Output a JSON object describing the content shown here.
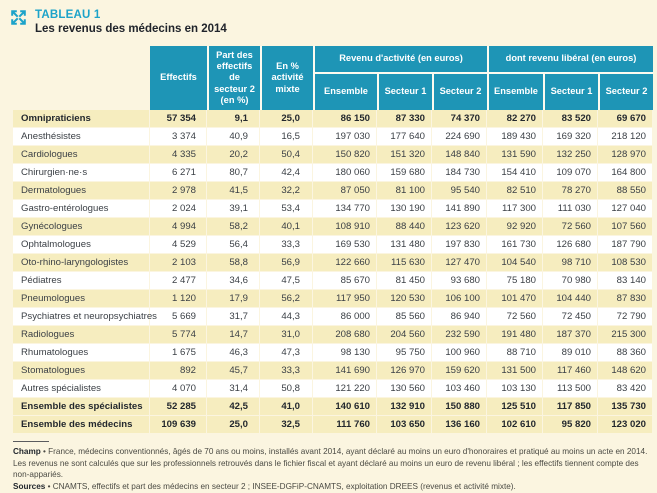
{
  "colors": {
    "accent_teal": "#1E95B6",
    "accent_cyan": "#1CA3C9",
    "row_yellow": "#F6EDBF",
    "page_cream": "#FBF5E0"
  },
  "header": {
    "tag": "TABLEAU 1",
    "title": "Les revenus des médecins en 2014",
    "icon": "expand-arrows-icon"
  },
  "table": {
    "columns": {
      "effectifs": "Effectifs",
      "part_secteur2": "Part des effectifs de secteur 2 (en %)",
      "activite_mixte": "En % activité mixte",
      "group_revenu": "Revenu d'activité (en euros)",
      "group_liberal": "dont revenu libéral (en euros)",
      "sub": [
        "Ensemble",
        "Secteur 1",
        "Secteur 2"
      ]
    },
    "rows": [
      {
        "label": "Omnipraticiens",
        "bold": true,
        "values": [
          "57 354",
          "9,1",
          "25,0",
          "86 150",
          "87 330",
          "74 370",
          "82 270",
          "83 520",
          "69 670"
        ]
      },
      {
        "label": "Anesthésistes",
        "bold": false,
        "values": [
          "3 374",
          "40,9",
          "16,5",
          "197 030",
          "177 640",
          "224 690",
          "189 430",
          "169 320",
          "218 120"
        ]
      },
      {
        "label": "Cardiologues",
        "bold": false,
        "values": [
          "4 335",
          "20,2",
          "50,4",
          "150 820",
          "151 320",
          "148 840",
          "131 590",
          "132 250",
          "128 970"
        ]
      },
      {
        "label": "Chirurgien·ne·s",
        "bold": false,
        "values": [
          "6 271",
          "80,7",
          "42,4",
          "180 060",
          "159 680",
          "184 730",
          "154 410",
          "109 070",
          "164 800"
        ]
      },
      {
        "label": "Dermatologues",
        "bold": false,
        "values": [
          "2 978",
          "41,5",
          "32,2",
          "87 050",
          "81 100",
          "95 540",
          "82 510",
          "78 270",
          "88 550"
        ]
      },
      {
        "label": "Gastro-entérologues",
        "bold": false,
        "values": [
          "2 024",
          "39,1",
          "53,4",
          "134 770",
          "130 190",
          "141 890",
          "117 300",
          "111 030",
          "127 040"
        ]
      },
      {
        "label": "Gynécologues",
        "bold": false,
        "values": [
          "4 994",
          "58,2",
          "40,1",
          "108 910",
          "88 440",
          "123 620",
          "92 920",
          "72 560",
          "107 560"
        ]
      },
      {
        "label": "Ophtalmologues",
        "bold": false,
        "values": [
          "4 529",
          "56,4",
          "33,3",
          "169 530",
          "131 480",
          "197 830",
          "161 730",
          "126 680",
          "187 790"
        ]
      },
      {
        "label": "Oto-rhino-laryngologistes",
        "bold": false,
        "values": [
          "2 103",
          "58,8",
          "56,9",
          "122 660",
          "115 630",
          "127 470",
          "104 540",
          "98 710",
          "108 530"
        ]
      },
      {
        "label": "Pédiatres",
        "bold": false,
        "values": [
          "2 477",
          "34,6",
          "47,5",
          "85 670",
          "81 450",
          "93 680",
          "75 180",
          "70 980",
          "83 140"
        ]
      },
      {
        "label": "Pneumologues",
        "bold": false,
        "values": [
          "1 120",
          "17,9",
          "56,2",
          "117 950",
          "120 530",
          "106 100",
          "101 470",
          "104 440",
          "87 830"
        ]
      },
      {
        "label": "Psychiatres et neuropsychiatres",
        "bold": false,
        "values": [
          "5 669",
          "31,7",
          "44,3",
          "86 000",
          "85 560",
          "86 940",
          "72 560",
          "72 450",
          "72 790"
        ]
      },
      {
        "label": "Radiologues",
        "bold": false,
        "values": [
          "5 774",
          "14,7",
          "31,0",
          "208 680",
          "204 560",
          "232 590",
          "191 480",
          "187 370",
          "215 300"
        ]
      },
      {
        "label": "Rhumatologues",
        "bold": false,
        "values": [
          "1 675",
          "46,3",
          "47,3",
          "98 130",
          "95 750",
          "100 960",
          "88 710",
          "89 010",
          "88 360"
        ]
      },
      {
        "label": "Stomatologues",
        "bold": false,
        "values": [
          "892",
          "45,7",
          "33,3",
          "141 690",
          "126 970",
          "159 620",
          "131 500",
          "117 460",
          "148 620"
        ]
      },
      {
        "label": "Autres spécialistes",
        "bold": false,
        "values": [
          "4 070",
          "31,4",
          "50,8",
          "121 220",
          "130 560",
          "103 460",
          "103 130",
          "113 500",
          "83 420"
        ]
      },
      {
        "label": "Ensemble des spécialistes",
        "bold": true,
        "values": [
          "52 285",
          "42,5",
          "41,0",
          "140 610",
          "132 910",
          "150 880",
          "125 510",
          "117 850",
          "135 730"
        ]
      },
      {
        "label": "Ensemble des médecins",
        "bold": true,
        "values": [
          "109 639",
          "25,0",
          "32,5",
          "111 760",
          "103 650",
          "136 160",
          "102 610",
          "95 820",
          "123 020"
        ]
      }
    ]
  },
  "footer": {
    "champ_label": "Champ",
    "champ_text": "• France, médecins conventionnés, âgés de 70 ans ou moins, installés avant 2014, ayant déclaré au moins un euro d'honoraires et pratiqué au moins un acte en 2014.",
    "note": "Les revenus ne sont calculés que sur les professionnels retrouvés dans le fichier fiscal et ayant déclaré au moins un euro de revenu libéral ; les effectifs tiennent compte des non-appariés.",
    "sources_label": "Sources",
    "sources_text": "• CNAMTS, effectifs et part des médecins en secteur 2 ; INSEE-DGFiP-CNAMTS, exploitation DREES (revenus et activité mixte)."
  }
}
